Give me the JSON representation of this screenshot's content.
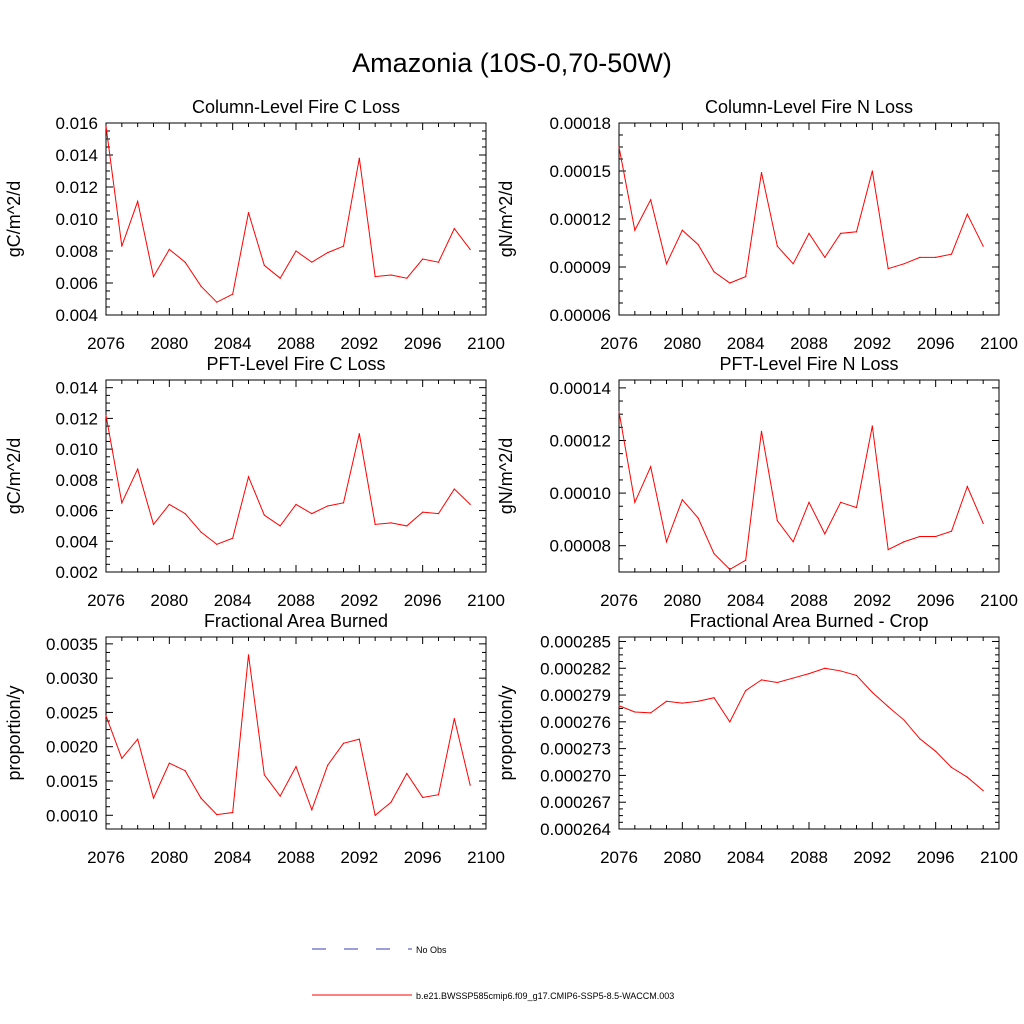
{
  "figure": {
    "title": "Amazonia (10S-0,70-50W)"
  },
  "chart_data": [
    {
      "type": "line",
      "title": "Column-Level Fire C Loss",
      "xlabel": "",
      "ylabel": "gC/m^2/d",
      "xlim": [
        2076,
        2100
      ],
      "ylim": [
        0.004,
        0.016
      ],
      "xticks": [
        2076,
        2080,
        2084,
        2088,
        2092,
        2096,
        2100
      ],
      "xtick_labels": [
        "2076",
        "2080",
        "2084",
        "2088",
        "2092",
        "2096",
        "2100"
      ],
      "yticks": [
        0.004,
        0.006,
        0.008,
        0.01,
        0.012,
        0.014,
        0.016
      ],
      "ytick_labels": [
        "0.004",
        "0.006",
        "0.008",
        "0.010",
        "0.012",
        "0.014",
        "0.016"
      ],
      "x": [
        2076,
        2077,
        2078,
        2079,
        2080,
        2081,
        2082,
        2083,
        2084,
        2085,
        2086,
        2087,
        2088,
        2089,
        2090,
        2091,
        2092,
        2093,
        2094,
        2095,
        2096,
        2097,
        2098,
        2099
      ],
      "series": [
        {
          "name": "b.e21.BWSSP585cmip6.f09_g17.CMIP6-SSP5-8.5-WACCM.003",
          "color": "#ff0000",
          "values": [
            0.0158,
            0.0083,
            0.0111,
            0.0064,
            0.0081,
            0.0073,
            0.0058,
            0.0048,
            0.0053,
            0.0104,
            0.0071,
            0.0063,
            0.008,
            0.0073,
            0.0079,
            0.0083,
            0.0138,
            0.0064,
            0.0065,
            0.0063,
            0.0075,
            0.0073,
            0.0094,
            0.0081
          ]
        }
      ]
    },
    {
      "type": "line",
      "title": "Column-Level Fire N Loss",
      "xlabel": "",
      "ylabel": "gN/m^2/d",
      "xlim": [
        2076,
        2100
      ],
      "ylim": [
        6e-05,
        0.00018
      ],
      "xticks": [
        2076,
        2080,
        2084,
        2088,
        2092,
        2096,
        2100
      ],
      "xtick_labels": [
        "2076",
        "2080",
        "2084",
        "2088",
        "2092",
        "2096",
        "2100"
      ],
      "yticks": [
        6e-05,
        9e-05,
        0.00012,
        0.00015,
        0.00018
      ],
      "ytick_labels": [
        "0.00006",
        "0.00009",
        "0.00012",
        "0.00015",
        "0.00018"
      ],
      "x": [
        2076,
        2077,
        2078,
        2079,
        2080,
        2081,
        2082,
        2083,
        2084,
        2085,
        2086,
        2087,
        2088,
        2089,
        2090,
        2091,
        2092,
        2093,
        2094,
        2095,
        2096,
        2097,
        2098,
        2099
      ],
      "series": [
        {
          "name": "b.e21.BWSSP585cmip6.f09_g17.CMIP6-SSP5-8.5-WACCM.003",
          "color": "#ff0000",
          "values": [
            0.000165,
            0.000113,
            0.000132,
            9.2e-05,
            0.000113,
            0.000104,
            8.7e-05,
            8e-05,
            8.4e-05,
            0.000149,
            0.000103,
            9.2e-05,
            0.000111,
            9.6e-05,
            0.000111,
            0.000112,
            0.00015,
            8.9e-05,
            9.2e-05,
            9.6e-05,
            9.6e-05,
            9.8e-05,
            0.000123,
            0.000103
          ]
        }
      ]
    },
    {
      "type": "line",
      "title": "PFT-Level Fire C Loss",
      "xlabel": "",
      "ylabel": "gC/m^2/d",
      "xlim": [
        2076,
        2100
      ],
      "ylim": [
        0.002,
        0.0145
      ],
      "xticks": [
        2076,
        2080,
        2084,
        2088,
        2092,
        2096,
        2100
      ],
      "xtick_labels": [
        "2076",
        "2080",
        "2084",
        "2088",
        "2092",
        "2096",
        "2100"
      ],
      "yticks": [
        0.002,
        0.004,
        0.006,
        0.008,
        0.01,
        0.012,
        0.014
      ],
      "ytick_labels": [
        "0.002",
        "0.004",
        "0.006",
        "0.008",
        "0.010",
        "0.012",
        "0.014"
      ],
      "x": [
        2076,
        2077,
        2078,
        2079,
        2080,
        2081,
        2082,
        2083,
        2084,
        2085,
        2086,
        2087,
        2088,
        2089,
        2090,
        2091,
        2092,
        2093,
        2094,
        2095,
        2096,
        2097,
        2098,
        2099
      ],
      "series": [
        {
          "name": "b.e21.BWSSP585cmip6.f09_g17.CMIP6-SSP5-8.5-WACCM.003",
          "color": "#ff0000",
          "values": [
            0.0122,
            0.0065,
            0.0087,
            0.0051,
            0.0064,
            0.0058,
            0.0046,
            0.0038,
            0.0042,
            0.0082,
            0.0057,
            0.005,
            0.0064,
            0.0058,
            0.0063,
            0.0065,
            0.011,
            0.0051,
            0.0052,
            0.005,
            0.0059,
            0.0058,
            0.0074,
            0.0064
          ]
        }
      ]
    },
    {
      "type": "line",
      "title": "PFT-Level Fire N Loss",
      "xlabel": "",
      "ylabel": "gN/m^2/d",
      "xlim": [
        2076,
        2100
      ],
      "ylim": [
        7e-05,
        0.000143
      ],
      "xticks": [
        2076,
        2080,
        2084,
        2088,
        2092,
        2096,
        2100
      ],
      "xtick_labels": [
        "2076",
        "2080",
        "2084",
        "2088",
        "2092",
        "2096",
        "2100"
      ],
      "yticks": [
        8e-05,
        0.0001,
        0.00012,
        0.00014
      ],
      "ytick_labels": [
        "0.00008",
        "0.00010",
        "0.00012",
        "0.00014"
      ],
      "x": [
        2076,
        2077,
        2078,
        2079,
        2080,
        2081,
        2082,
        2083,
        2084,
        2085,
        2086,
        2087,
        2088,
        2089,
        2090,
        2091,
        2092,
        2093,
        2094,
        2095,
        2096,
        2097,
        2098,
        2099
      ],
      "series": [
        {
          "name": "b.e21.BWSSP585cmip6.f09_g17.CMIP6-SSP5-8.5-WACCM.003",
          "color": "#ff0000",
          "values": [
            0.000131,
            9.65e-05,
            0.00011,
            8.15e-05,
            9.75e-05,
            9.05e-05,
            7.7e-05,
            7.1e-05,
            7.45e-05,
            0.0001235,
            8.95e-05,
            8.15e-05,
            9.65e-05,
            8.45e-05,
            9.65e-05,
            9.45e-05,
            0.0001255,
            7.85e-05,
            8.15e-05,
            8.35e-05,
            8.35e-05,
            8.55e-05,
            0.0001025,
            8.85e-05
          ]
        }
      ]
    },
    {
      "type": "line",
      "title": "Fractional Area Burned",
      "xlabel": "",
      "ylabel": "proportion/y",
      "xlim": [
        2076,
        2100
      ],
      "ylim": [
        0.0008,
        0.0036
      ],
      "xticks": [
        2076,
        2080,
        2084,
        2088,
        2092,
        2096,
        2100
      ],
      "xtick_labels": [
        "2076",
        "2080",
        "2084",
        "2088",
        "2092",
        "2096",
        "2100"
      ],
      "yticks": [
        0.001,
        0.0015,
        0.002,
        0.0025,
        0.003,
        0.0035
      ],
      "ytick_labels": [
        "0.0010",
        "0.0015",
        "0.0020",
        "0.0025",
        "0.0030",
        "0.0035"
      ],
      "x": [
        2076,
        2077,
        2078,
        2079,
        2080,
        2081,
        2082,
        2083,
        2084,
        2085,
        2086,
        2087,
        2088,
        2089,
        2090,
        2091,
        2092,
        2093,
        2094,
        2095,
        2096,
        2097,
        2098,
        2099
      ],
      "series": [
        {
          "name": "b.e21.BWSSP585cmip6.f09_g17.CMIP6-SSP5-8.5-WACCM.003",
          "color": "#ff0000",
          "values": [
            0.00245,
            0.00183,
            0.00211,
            0.00125,
            0.00176,
            0.00165,
            0.00125,
            0.00101,
            0.00104,
            0.00334,
            0.00159,
            0.00128,
            0.00171,
            0.00108,
            0.00173,
            0.00205,
            0.00211,
            0.001,
            0.00119,
            0.00161,
            0.00126,
            0.0013,
            0.00241,
            0.00144
          ]
        }
      ]
    },
    {
      "type": "line",
      "title": "Fractional Area Burned - Crop",
      "xlabel": "",
      "ylabel": "proportion/y",
      "xlim": [
        2076,
        2100
      ],
      "ylim": [
        0.000264,
        0.0002855
      ],
      "xticks": [
        2076,
        2080,
        2084,
        2088,
        2092,
        2096,
        2100
      ],
      "xtick_labels": [
        "2076",
        "2080",
        "2084",
        "2088",
        "2092",
        "2096",
        "2100"
      ],
      "yticks": [
        0.000264,
        0.000267,
        0.00027,
        0.000273,
        0.000276,
        0.000279,
        0.000282,
        0.000285
      ],
      "ytick_labels": [
        "0.000264",
        "0.000267",
        "0.000270",
        "0.000273",
        "0.000276",
        "0.000279",
        "0.000282",
        "0.000285"
      ],
      "x": [
        2076,
        2077,
        2078,
        2079,
        2080,
        2081,
        2082,
        2083,
        2084,
        2085,
        2086,
        2087,
        2088,
        2089,
        2090,
        2091,
        2092,
        2093,
        2094,
        2095,
        2096,
        2097,
        2098,
        2099
      ],
      "series": [
        {
          "name": "b.e21.BWSSP585cmip6.f09_g17.CMIP6-SSP5-8.5-WACCM.003",
          "color": "#ff0000",
          "values": [
            0.0002778,
            0.0002771,
            0.000277,
            0.0002783,
            0.0002781,
            0.0002783,
            0.0002787,
            0.000276,
            0.0002795,
            0.0002807,
            0.0002804,
            0.0002809,
            0.0002814,
            0.000282,
            0.0002817,
            0.0002812,
            0.0002793,
            0.0002777,
            0.0002762,
            0.0002741,
            0.0002727,
            0.0002709,
            0.0002698,
            0.0002683
          ]
        }
      ]
    }
  ],
  "legend": {
    "placement": "bottom-center",
    "entries": [
      {
        "label": "No Obs",
        "style": "dashed",
        "color": "#3b3bb0"
      },
      {
        "label": "b.e21.BWSSP585cmip6.f09_g17.CMIP6-SSP5-8.5-WACCM.003",
        "style": "solid",
        "color": "#ff0000"
      }
    ]
  }
}
